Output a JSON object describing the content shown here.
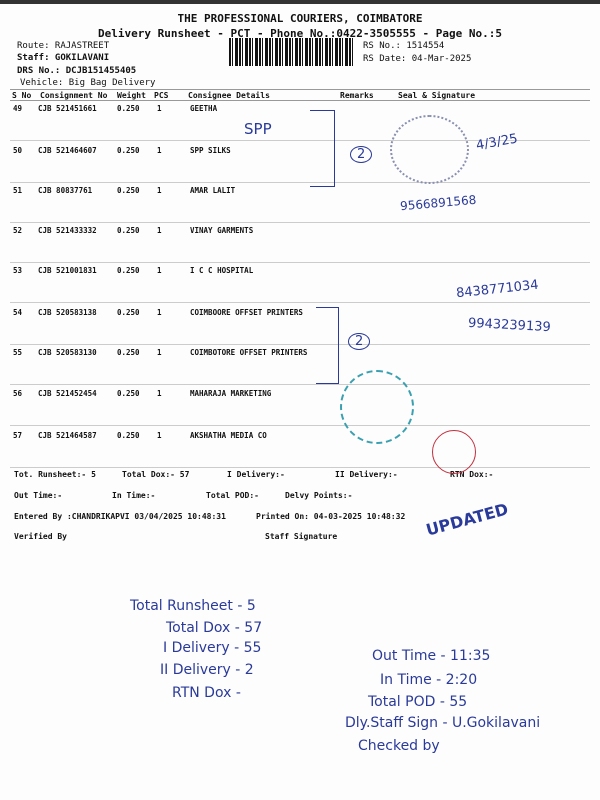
{
  "header": {
    "company": "THE PROFESSIONAL COURIERS, COIMBATORE",
    "subtitle": "Delivery Runsheet - PCT - Phone No.:0422-3505555 - Page No.:5",
    "route": "Route: RAJASTREET",
    "staff": "Staff: GOKILAVANI",
    "drs": "DRS No.: DCJB151455405",
    "vehicle": "Vehicle: Big Bag Delivery",
    "rs_no": "RS No.: 1514554",
    "rs_date": "RS Date: 04-Mar-2025"
  },
  "table": {
    "columns": [
      "S No",
      "Consignment No",
      "Weight",
      "PCS",
      "Consignee Details",
      "Remarks",
      "Seal & Signature"
    ],
    "rows": [
      {
        "sno": "49",
        "cn": "CJB 521451661",
        "wt": "0.250",
        "pcs": "1",
        "consignee": "GEETHA"
      },
      {
        "sno": "50",
        "cn": "CJB 521464607",
        "wt": "0.250",
        "pcs": "1",
        "consignee": "SPP SILKS"
      },
      {
        "sno": "51",
        "cn": "CJB 80837761",
        "wt": "0.250",
        "pcs": "1",
        "consignee": "AMAR LALIT"
      },
      {
        "sno": "52",
        "cn": "CJB 521433332",
        "wt": "0.250",
        "pcs": "1",
        "consignee": "VINAY GARMENTS"
      },
      {
        "sno": "53",
        "cn": "CJB 521001831",
        "wt": "0.250",
        "pcs": "1",
        "consignee": "I C C  HOSPITAL"
      },
      {
        "sno": "54",
        "cn": "CJB 520583138",
        "wt": "0.250",
        "pcs": "1",
        "consignee": "COIMBOORE OFFSET PRINTERS"
      },
      {
        "sno": "55",
        "cn": "CJB 520583130",
        "wt": "0.250",
        "pcs": "1",
        "consignee": "COIMBOTORE OFFSET PRINTERS"
      },
      {
        "sno": "56",
        "cn": "CJB 521452454",
        "wt": "0.250",
        "pcs": "1",
        "consignee": "MAHARAJA MARKETING"
      },
      {
        "sno": "57",
        "cn": "CJB 521464587",
        "wt": "0.250",
        "pcs": "1",
        "consignee": "AKSHATHA MEDIA CO"
      }
    ]
  },
  "totals": {
    "runsheet": "Tot. Runsheet:- 5",
    "dox": "Total Dox:-  57",
    "i_delivery": "I Delivery:-",
    "ii_delivery": "II Delivery:-",
    "rtn": "RTN Dox:-",
    "out": "Out Time:-",
    "in": "In Time:-",
    "pod": "Total POD:-",
    "points": "Delvy Points:-",
    "entered": "Entered By :CHANDRIKAPVI 03/04/2025 10:48:31",
    "printed": "Printed On: 04-03-2025 10:48:32",
    "verified": "Verified By",
    "staff_sig": "Staff Signature"
  },
  "handwritten": {
    "spp": "SPP",
    "two_a": "2",
    "two_b": "2",
    "phone1": "9566891568",
    "phone2": "8438771034",
    "phone3": "9943239139",
    "date": "4/3/25",
    "updated": "UPDATED",
    "left": [
      "Total Runsheet - 5",
      "Total Dox - 57",
      "I Delivery - 55",
      "II Delivery - 2",
      "RTN Dox -"
    ],
    "right": [
      "Out Time - 11:35",
      "In Time - 2:20",
      "Total POD - 55",
      "Dly.Staff Sign - U.Gokilavani",
      "Checked by"
    ]
  },
  "colors": {
    "ink": "#2a3a9a",
    "stamp": "#3aa0b0",
    "red": "#c03040"
  }
}
